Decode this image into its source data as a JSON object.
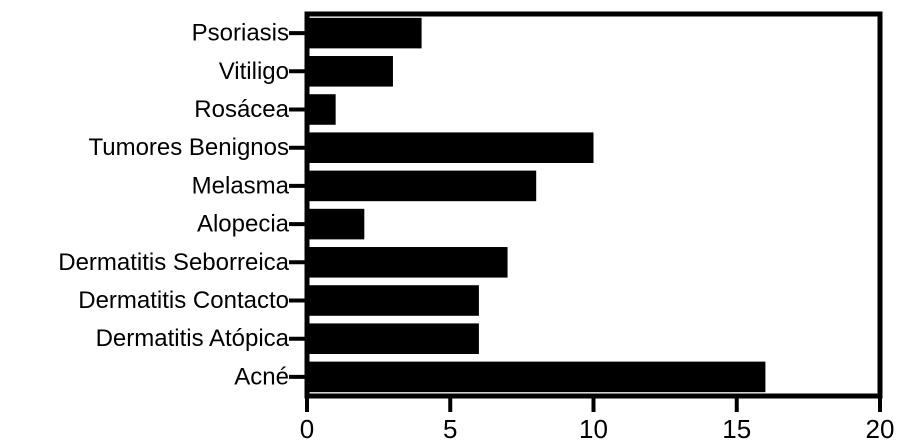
{
  "chart_data": {
    "type": "bar",
    "orientation": "horizontal",
    "categories": [
      "Psoriasis",
      "Vitiligo",
      "Rosácea",
      "Tumores Benignos",
      "Melasma",
      "Alopecia",
      "Dermatitis Seborreica",
      "Dermatitis Contacto",
      "Dermatitis Atópica",
      "Acné"
    ],
    "values": [
      4,
      3,
      1,
      10,
      8,
      2,
      7,
      6,
      6,
      16
    ],
    "xlim": [
      0,
      20
    ],
    "xticks": [
      "0",
      "5",
      "10",
      "15",
      "20"
    ],
    "title": "",
    "xlabel": "",
    "ylabel": "",
    "grid": false,
    "bar_color": "#000000"
  }
}
